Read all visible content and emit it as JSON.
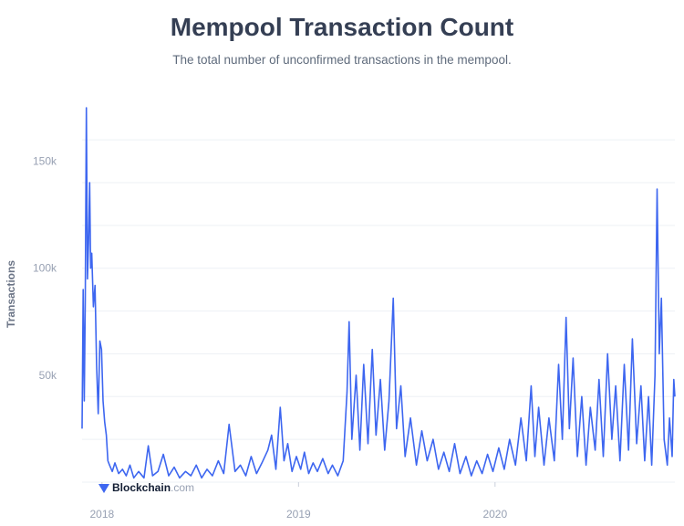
{
  "header": {
    "title": "Mempool Transaction Count",
    "subtitle": "The total number of unconfirmed transactions in the mempool."
  },
  "brand": {
    "name": "Blockchain",
    "suffix": ".com",
    "icon": "blockchain-logo-icon"
  },
  "colors": {
    "line": "#3d66f0",
    "grid": "#edf0f5",
    "axis": "#98a1b3",
    "title": "#353f54"
  },
  "chart_data": {
    "type": "line",
    "title": "Mempool Transaction Count",
    "subtitle": "The total number of unconfirmed transactions in the mempool.",
    "ylabel": "Transactions",
    "xlabel": "",
    "ylim": [
      0,
      175000
    ],
    "x_range": [
      "2017-11-25",
      "2020-11-30"
    ],
    "x_ticks": [
      {
        "label": "2018",
        "date": "2018-01-01"
      },
      {
        "label": "2019",
        "date": "2019-01-01"
      },
      {
        "label": "2020",
        "date": "2020-01-01"
      }
    ],
    "y_ticks": [
      {
        "label": "50k",
        "value": 50000
      },
      {
        "label": "100k",
        "value": 100000
      },
      {
        "label": "150k",
        "value": 150000
      }
    ],
    "grid": true,
    "series": [
      {
        "points": [
          [
            "2017-11-25",
            25000
          ],
          [
            "2017-11-27",
            90000
          ],
          [
            "2017-11-29",
            38000
          ],
          [
            "2017-12-01",
            85000
          ],
          [
            "2017-12-03",
            175000
          ],
          [
            "2017-12-05",
            95000
          ],
          [
            "2017-12-07",
            112000
          ],
          [
            "2017-12-09",
            140000
          ],
          [
            "2017-12-11",
            100000
          ],
          [
            "2017-12-13",
            107000
          ],
          [
            "2017-12-16",
            82000
          ],
          [
            "2017-12-19",
            92000
          ],
          [
            "2017-12-22",
            55000
          ],
          [
            "2017-12-25",
            32000
          ],
          [
            "2017-12-28",
            66000
          ],
          [
            "2017-12-31",
            62000
          ],
          [
            "2018-01-03",
            38000
          ],
          [
            "2018-01-06",
            28000
          ],
          [
            "2018-01-09",
            22000
          ],
          [
            "2018-01-12",
            10000
          ],
          [
            "2018-01-15",
            8000
          ],
          [
            "2018-01-20",
            5000
          ],
          [
            "2018-01-25",
            9000
          ],
          [
            "2018-02-01",
            4000
          ],
          [
            "2018-02-08",
            6000
          ],
          [
            "2018-02-15",
            3000
          ],
          [
            "2018-02-22",
            8000
          ],
          [
            "2018-03-01",
            2000
          ],
          [
            "2018-03-10",
            5000
          ],
          [
            "2018-03-20",
            2000
          ],
          [
            "2018-03-28",
            17000
          ],
          [
            "2018-04-05",
            3000
          ],
          [
            "2018-04-15",
            5000
          ],
          [
            "2018-04-25",
            13000
          ],
          [
            "2018-05-05",
            3000
          ],
          [
            "2018-05-15",
            7000
          ],
          [
            "2018-05-25",
            2000
          ],
          [
            "2018-06-05",
            5000
          ],
          [
            "2018-06-15",
            3000
          ],
          [
            "2018-06-25",
            8000
          ],
          [
            "2018-07-05",
            2000
          ],
          [
            "2018-07-15",
            6000
          ],
          [
            "2018-07-25",
            3000
          ],
          [
            "2018-08-05",
            10000
          ],
          [
            "2018-08-15",
            4000
          ],
          [
            "2018-08-25",
            27000
          ],
          [
            "2018-09-05",
            5000
          ],
          [
            "2018-09-15",
            8000
          ],
          [
            "2018-09-25",
            3000
          ],
          [
            "2018-10-05",
            12000
          ],
          [
            "2018-10-15",
            4000
          ],
          [
            "2018-10-25",
            9000
          ],
          [
            "2018-11-05",
            15000
          ],
          [
            "2018-11-12",
            22000
          ],
          [
            "2018-11-20",
            6000
          ],
          [
            "2018-11-28",
            35000
          ],
          [
            "2018-12-05",
            10000
          ],
          [
            "2018-12-12",
            18000
          ],
          [
            "2018-12-20",
            5000
          ],
          [
            "2018-12-28",
            12000
          ],
          [
            "2019-01-05",
            6000
          ],
          [
            "2019-01-12",
            14000
          ],
          [
            "2019-01-20",
            4000
          ],
          [
            "2019-01-28",
            9000
          ],
          [
            "2019-02-05",
            5000
          ],
          [
            "2019-02-15",
            11000
          ],
          [
            "2019-02-25",
            4000
          ],
          [
            "2019-03-05",
            8000
          ],
          [
            "2019-03-15",
            3000
          ],
          [
            "2019-03-25",
            10000
          ],
          [
            "2019-04-01",
            42000
          ],
          [
            "2019-04-05",
            75000
          ],
          [
            "2019-04-10",
            20000
          ],
          [
            "2019-04-18",
            50000
          ],
          [
            "2019-04-25",
            15000
          ],
          [
            "2019-05-02",
            55000
          ],
          [
            "2019-05-10",
            18000
          ],
          [
            "2019-05-18",
            62000
          ],
          [
            "2019-05-25",
            22000
          ],
          [
            "2019-06-02",
            48000
          ],
          [
            "2019-06-10",
            15000
          ],
          [
            "2019-06-18",
            38000
          ],
          [
            "2019-06-26",
            86000
          ],
          [
            "2019-07-02",
            25000
          ],
          [
            "2019-07-10",
            45000
          ],
          [
            "2019-07-18",
            12000
          ],
          [
            "2019-07-28",
            30000
          ],
          [
            "2019-08-08",
            8000
          ],
          [
            "2019-08-18",
            24000
          ],
          [
            "2019-08-28",
            10000
          ],
          [
            "2019-09-08",
            20000
          ],
          [
            "2019-09-18",
            6000
          ],
          [
            "2019-09-28",
            14000
          ],
          [
            "2019-10-08",
            5000
          ],
          [
            "2019-10-18",
            18000
          ],
          [
            "2019-10-28",
            4000
          ],
          [
            "2019-11-08",
            12000
          ],
          [
            "2019-11-18",
            3000
          ],
          [
            "2019-11-28",
            10000
          ],
          [
            "2019-12-08",
            4000
          ],
          [
            "2019-12-18",
            13000
          ],
          [
            "2019-12-28",
            5000
          ],
          [
            "2020-01-08",
            16000
          ],
          [
            "2020-01-18",
            6000
          ],
          [
            "2020-01-28",
            20000
          ],
          [
            "2020-02-08",
            8000
          ],
          [
            "2020-02-18",
            30000
          ],
          [
            "2020-02-28",
            10000
          ],
          [
            "2020-03-08",
            45000
          ],
          [
            "2020-03-15",
            12000
          ],
          [
            "2020-03-22",
            35000
          ],
          [
            "2020-04-01",
            8000
          ],
          [
            "2020-04-10",
            30000
          ],
          [
            "2020-04-20",
            10000
          ],
          [
            "2020-04-28",
            55000
          ],
          [
            "2020-05-05",
            20000
          ],
          [
            "2020-05-12",
            77000
          ],
          [
            "2020-05-18",
            25000
          ],
          [
            "2020-05-25",
            58000
          ],
          [
            "2020-06-02",
            12000
          ],
          [
            "2020-06-10",
            40000
          ],
          [
            "2020-06-18",
            8000
          ],
          [
            "2020-06-26",
            35000
          ],
          [
            "2020-07-05",
            15000
          ],
          [
            "2020-07-12",
            48000
          ],
          [
            "2020-07-20",
            12000
          ],
          [
            "2020-07-28",
            60000
          ],
          [
            "2020-08-05",
            20000
          ],
          [
            "2020-08-12",
            45000
          ],
          [
            "2020-08-20",
            10000
          ],
          [
            "2020-08-28",
            55000
          ],
          [
            "2020-09-05",
            15000
          ],
          [
            "2020-09-12",
            67000
          ],
          [
            "2020-09-20",
            18000
          ],
          [
            "2020-09-28",
            45000
          ],
          [
            "2020-10-05",
            10000
          ],
          [
            "2020-10-12",
            40000
          ],
          [
            "2020-10-18",
            8000
          ],
          [
            "2020-10-24",
            50000
          ],
          [
            "2020-10-28",
            137000
          ],
          [
            "2020-11-01",
            60000
          ],
          [
            "2020-11-05",
            86000
          ],
          [
            "2020-11-10",
            20000
          ],
          [
            "2020-11-16",
            8000
          ],
          [
            "2020-11-20",
            30000
          ],
          [
            "2020-11-25",
            12000
          ],
          [
            "2020-11-28",
            48000
          ],
          [
            "2020-11-30",
            40000
          ]
        ]
      }
    ]
  }
}
